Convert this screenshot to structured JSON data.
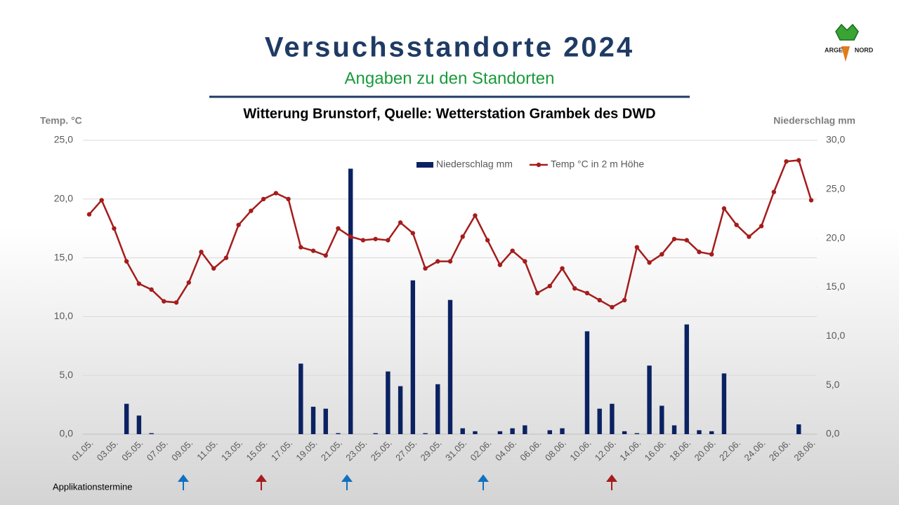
{
  "header": {
    "title": "Versuchsstandorte 2024",
    "subtitle": "Angaben zu den Standorten"
  },
  "logo": {
    "left": "ARGE",
    "right": "NORD"
  },
  "chart_data": {
    "type": "bar",
    "title": "Witterung Brunstorf, Quelle: Wetterstation Grambek des DWD",
    "y_label": "Temp. °C",
    "y2_label": "Niederschlag mm",
    "annotation": "Applikationstermine",
    "categories": [
      "01.05.",
      null,
      "03.05.",
      null,
      "05.05.",
      null,
      "07.05.",
      null,
      "09.05.",
      null,
      "11.05.",
      null,
      "13.05.",
      null,
      "15.05.",
      null,
      "17.05.",
      null,
      "19.05.",
      null,
      "21.05.",
      null,
      "23.05.",
      null,
      "25.05.",
      null,
      "27.05.",
      null,
      "29.05.",
      null,
      "31.05.",
      null,
      "02.06.",
      null,
      "04.06.",
      null,
      "06.06.",
      null,
      "08.06.",
      null,
      "10.06.",
      null,
      "12.06.",
      null,
      "14.06.",
      null,
      "16.06.",
      null,
      "18.06.",
      null,
      "20.06.",
      null,
      "22.06.",
      null,
      "24.06.",
      null,
      "26.06.",
      null,
      "28.06."
    ],
    "series": [
      {
        "name": "Niederschlag mm",
        "type": "bar",
        "axis": "y2",
        "color": "#0b2262",
        "values": [
          0,
          0,
          0,
          3.1,
          1.9,
          0.1,
          0,
          0,
          0,
          0,
          0,
          0,
          0,
          0,
          0,
          0,
          0,
          7.2,
          2.8,
          2.6,
          0.1,
          27.1,
          0,
          0.1,
          6.4,
          4.9,
          15.7,
          0.1,
          5.1,
          13.7,
          0.6,
          0.3,
          0,
          0.3,
          0.6,
          0.9,
          0,
          0.4,
          0.6,
          0,
          10.5,
          2.6,
          3.1,
          0.3,
          0.1,
          7.0,
          2.9,
          0.9,
          11.2,
          0.4,
          0.3,
          6.2,
          0,
          0,
          0,
          0,
          0,
          1.0,
          0
        ]
      },
      {
        "name": "Temp °C in 2 m Höhe",
        "type": "line",
        "axis": "y",
        "color": "#a51c1c",
        "values": [
          18.7,
          19.9,
          17.5,
          14.7,
          12.8,
          12.3,
          11.3,
          11.2,
          12.9,
          15.5,
          14.1,
          15.0,
          17.8,
          19.0,
          20.0,
          20.5,
          20.0,
          15.9,
          15.6,
          15.2,
          17.5,
          16.8,
          16.5,
          16.6,
          16.5,
          18.0,
          17.1,
          14.1,
          14.7,
          14.7,
          16.8,
          18.6,
          16.5,
          14.4,
          15.6,
          14.7,
          12.0,
          12.6,
          14.1,
          12.4,
          12.0,
          11.4,
          10.8,
          11.4,
          15.9,
          14.6,
          15.3,
          16.6,
          16.5,
          15.5,
          15.3,
          19.2,
          17.8,
          16.8,
          17.7,
          20.6,
          23.2,
          23.3,
          19.9
        ]
      }
    ],
    "ylim": [
      0,
      25
    ],
    "yticks": [
      {
        "value": 0,
        "label": "0,0"
      },
      {
        "value": 5,
        "label": "5,0"
      },
      {
        "value": 10,
        "label": "10,0"
      },
      {
        "value": 15,
        "label": "15,0"
      },
      {
        "value": 20,
        "label": "20,0"
      },
      {
        "value": 25,
        "label": "25,0"
      }
    ],
    "y2lim": [
      0,
      30
    ],
    "y2ticks": [
      {
        "value": 0,
        "label": "0,0"
      },
      {
        "value": 5,
        "label": "5,0"
      },
      {
        "value": 10,
        "label": "10,0"
      },
      {
        "value": 15,
        "label": "15,0"
      },
      {
        "value": 20,
        "label": "20,0"
      },
      {
        "value": 25,
        "label": "25,0"
      },
      {
        "value": 30,
        "label": "30,0"
      }
    ],
    "grid": true
  }
}
